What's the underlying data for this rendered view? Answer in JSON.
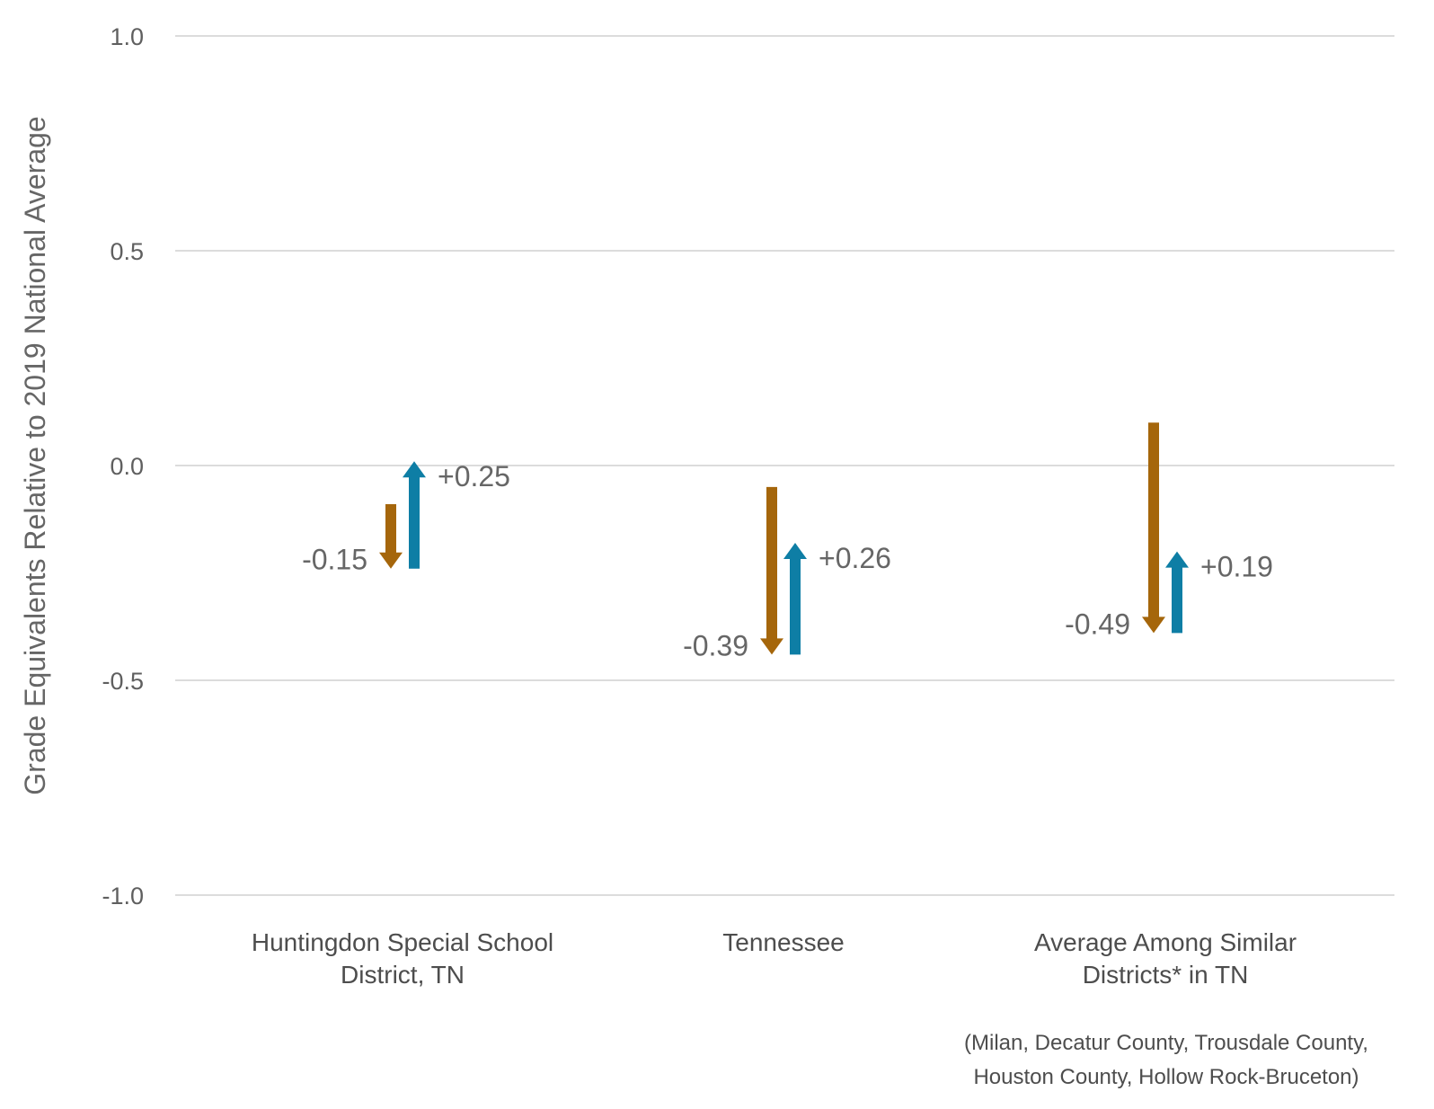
{
  "chart_data": {
    "type": "arrow-change",
    "ylabel": "Grade Equivalents Relative to 2019 National Average",
    "ylim": [
      -1.0,
      1.0
    ],
    "yticks": [
      1.0,
      0.5,
      0.0,
      -0.5,
      -1.0
    ],
    "ytick_labels": [
      "1.0",
      "0.5",
      "0.0",
      "-0.5",
      "-1.0"
    ],
    "grid": true,
    "colors": {
      "decline": "#a5660b",
      "recovery": "#0e7ea5",
      "grid": "#dcdcdc",
      "text": "#666666"
    },
    "footnote": [
      "(Milan, Decatur County, Trousdale County,",
      "Houston County, Hollow Rock-Bruceton)"
    ],
    "categories": [
      {
        "label_lines": [
          "Huntingdon Special School",
          "District, TN"
        ],
        "decline": {
          "from": -0.09,
          "to": -0.24,
          "label": "-0.15"
        },
        "recovery": {
          "from": -0.24,
          "to": 0.01,
          "label": "+0.25"
        }
      },
      {
        "label_lines": [
          "Tennessee"
        ],
        "decline": {
          "from": -0.05,
          "to": -0.44,
          "label": "-0.39"
        },
        "recovery": {
          "from": -0.44,
          "to": -0.18,
          "label": "+0.26"
        }
      },
      {
        "label_lines": [
          "Average Among Similar",
          "Districts* in TN"
        ],
        "decline": {
          "from": 0.1,
          "to": -0.39,
          "label": "-0.49"
        },
        "recovery": {
          "from": -0.39,
          "to": -0.2,
          "label": "+0.19"
        }
      }
    ]
  }
}
